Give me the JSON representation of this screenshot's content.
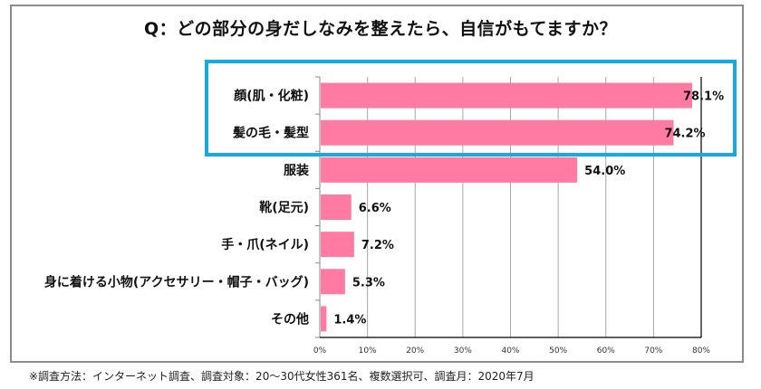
{
  "chart_data": {
    "type": "bar",
    "orientation": "horizontal",
    "title": "Q：どの部分の身だしなみを整えたら、自信がもてますか？",
    "categories": [
      "顔(肌・化粧)",
      "髪の毛・髪型",
      "服装",
      "靴(足元)",
      "手・爪(ネイル)",
      "身に着ける小物(アクセサリー・帽子・バッグ)",
      "その他"
    ],
    "values": [
      78.1,
      74.2,
      54.0,
      6.6,
      7.2,
      5.3,
      1.4
    ],
    "value_labels": [
      "78.1%",
      "74.2%",
      "54.0%",
      "6.6%",
      "7.2%",
      "5.3%",
      "1.4%"
    ],
    "xlabel": "",
    "ylabel": "",
    "xlim": [
      0,
      80
    ],
    "x_ticks": [
      0,
      10,
      20,
      30,
      40,
      50,
      60,
      70,
      80
    ],
    "x_tick_labels": [
      "0%",
      "10%",
      "20%",
      "30%",
      "40%",
      "50%",
      "60%",
      "70%",
      "80%"
    ],
    "grid": "vertical",
    "legend": "none",
    "highlight": {
      "categories": [
        "顔(肌・化粧)",
        "髪の毛・髪型"
      ],
      "color": "#17a9e1"
    },
    "bar_color": "#ff7ba3"
  },
  "footnote": "※調査方法：インターネット調査、調査対象：20～30代女性361名、複数選択可、調査月：2020年7月"
}
